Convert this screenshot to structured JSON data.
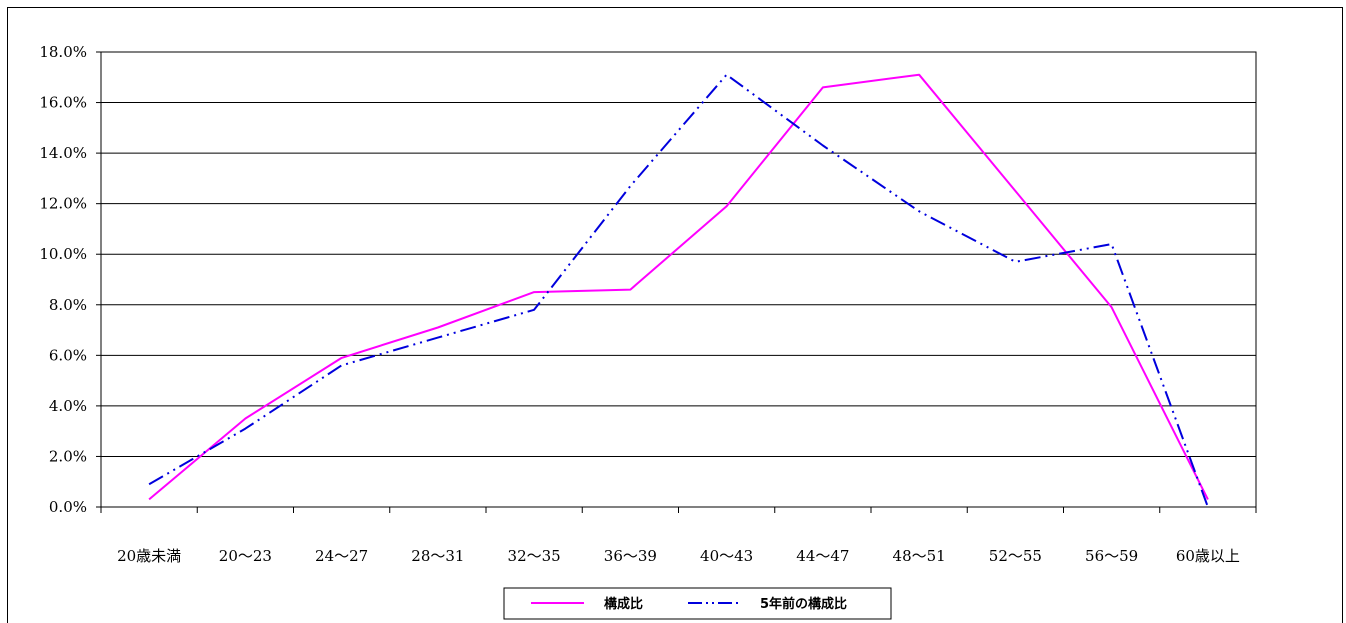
{
  "chart_data": {
    "type": "line",
    "categories": [
      "20歳未満",
      "20～23",
      "24～27",
      "28～31",
      "32～35",
      "36～39",
      "40～43",
      "44～47",
      "48～51",
      "52～55",
      "56～59",
      "60歳以上"
    ],
    "series": [
      {
        "name": "構成比",
        "values": [
          0.3,
          3.5,
          5.9,
          7.1,
          8.5,
          8.6,
          11.9,
          16.6,
          17.1,
          12.5,
          7.9,
          0.3
        ],
        "color": "#ff00ff",
        "style": "solid"
      },
      {
        "name": "5年前の構成比",
        "values": [
          0.9,
          3.1,
          5.6,
          6.7,
          7.8,
          12.7,
          17.1,
          14.3,
          11.7,
          9.7,
          10.4,
          0.0
        ],
        "color": "#0000dd",
        "style": "dash-dot-dot"
      }
    ],
    "y_ticks": [
      "0.0%",
      "2.0%",
      "4.0%",
      "6.0%",
      "8.0%",
      "10.0%",
      "12.0%",
      "14.0%",
      "16.0%",
      "18.0%"
    ],
    "ylim": [
      0,
      18
    ],
    "grid": true,
    "legend_position": "bottom-center"
  }
}
